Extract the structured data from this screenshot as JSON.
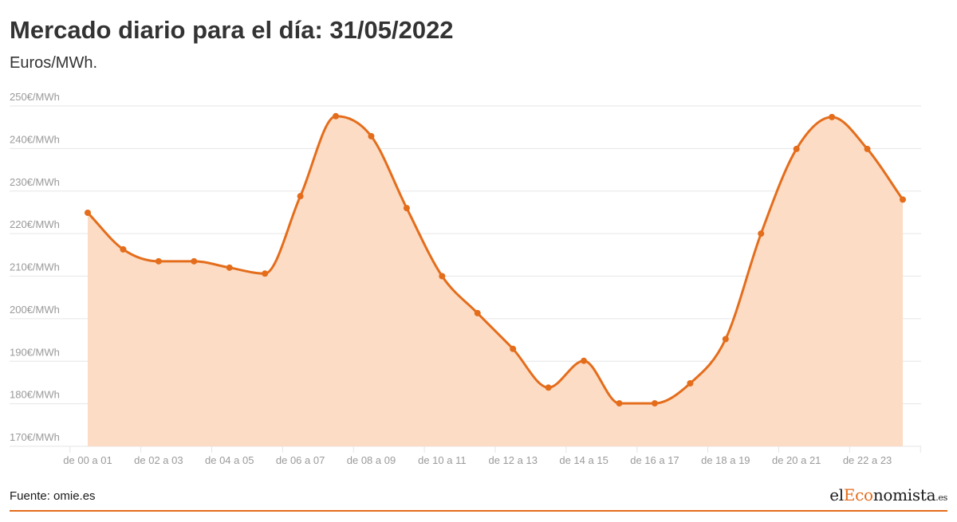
{
  "header": {
    "title": "Mercado diario para el día: 31/05/2022",
    "subtitle": "Euros/MWh."
  },
  "footer": {
    "source": "Fuente: omie.es",
    "logo": {
      "prefix": "el",
      "accent": "Eco",
      "main": "nomista",
      "suffix": ".es"
    }
  },
  "colors": {
    "line": "#e46d1c",
    "area": "#fcdcc5",
    "grid": "#e6e6e6",
    "tick_text": "#9a9a9a"
  },
  "chart_data": {
    "type": "area",
    "title": "Mercado diario para el día: 31/05/2022",
    "ylabel": "Euros/MWh.",
    "xlabel": "",
    "ylim": [
      170,
      250
    ],
    "yticks": [
      170,
      180,
      190,
      200,
      210,
      220,
      230,
      240,
      250
    ],
    "ytick_labels": [
      "170€/MWh",
      "180€/MWh",
      "190€/MWh",
      "200€/MWh",
      "210€/MWh",
      "220€/MWh",
      "230€/MWh",
      "240€/MWh",
      "250€/MWh"
    ],
    "xtick_labels": [
      "de 00 a 01",
      "de 02 a 03",
      "de 04 a 05",
      "de 06 a 07",
      "de 08 a 09",
      "de 10 a 11",
      "de 12 a 13",
      "de 14 a 15",
      "de 16 a 17",
      "de 18 a 19",
      "de 20 a 21",
      "de 22 a 23"
    ],
    "grid": true,
    "legend": "none",
    "series": [
      {
        "values": [
          224.9,
          216.3,
          213.5,
          213.5,
          212.0,
          210.6,
          228.8,
          247.6,
          242.9,
          226.0,
          210.0,
          201.3,
          192.9,
          183.8,
          190.1,
          180.1,
          180.1,
          184.8,
          195.2,
          220.0,
          239.9,
          247.4,
          239.9,
          228.0
        ]
      }
    ]
  }
}
